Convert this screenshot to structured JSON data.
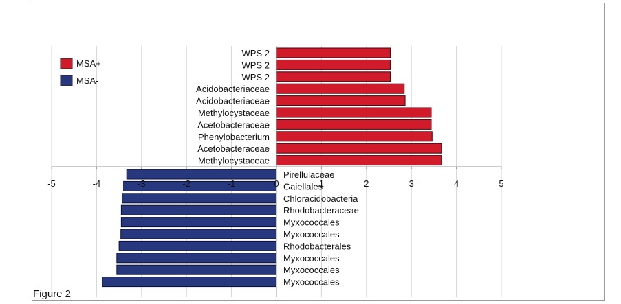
{
  "caption": "Figure 2",
  "chart_data": {
    "type": "bar",
    "orientation": "horizontal",
    "title": "",
    "xlabel": "",
    "ylabel": "",
    "xlim": [
      -5,
      5
    ],
    "xticks": [
      -5,
      -4,
      -3,
      -2,
      -1,
      0,
      1,
      2,
      3,
      4,
      5
    ],
    "grid": "vertical",
    "legend_position": "top-left",
    "legend": [
      {
        "label": "MSA+",
        "color": "#d11a2a"
      },
      {
        "label": "MSA-",
        "color": "#27387f"
      }
    ],
    "series": [
      {
        "name": "MSA+",
        "color": "#d11a2a",
        "categories": [
          "WPS 2",
          "WPS 2",
          "WPS 2",
          "Acidobacteriaceae",
          "Acidobacteriaceae",
          "Methylocystaceae",
          "Acetobacteraceae",
          "Phenylobacterium",
          "Acetobacteraceae",
          "Methylocystaceae"
        ],
        "values": [
          2.53,
          2.53,
          2.53,
          2.84,
          2.86,
          3.44,
          3.44,
          3.46,
          3.67,
          3.67
        ]
      },
      {
        "name": "MSA-",
        "color": "#27387f",
        "categories": [
          "Pirellulaceae",
          "Gaiellales",
          "Chloracidobacteria",
          "Rhodobacteraceae",
          "Myxococcales",
          "Myxococcales",
          "Rhodobacterales",
          "Myxococcales",
          "Myxococcales",
          "Myxococcales"
        ],
        "values": [
          -3.33,
          -3.4,
          -3.43,
          -3.45,
          -3.45,
          -3.46,
          -3.5,
          -3.55,
          -3.55,
          -3.87
        ]
      }
    ]
  }
}
